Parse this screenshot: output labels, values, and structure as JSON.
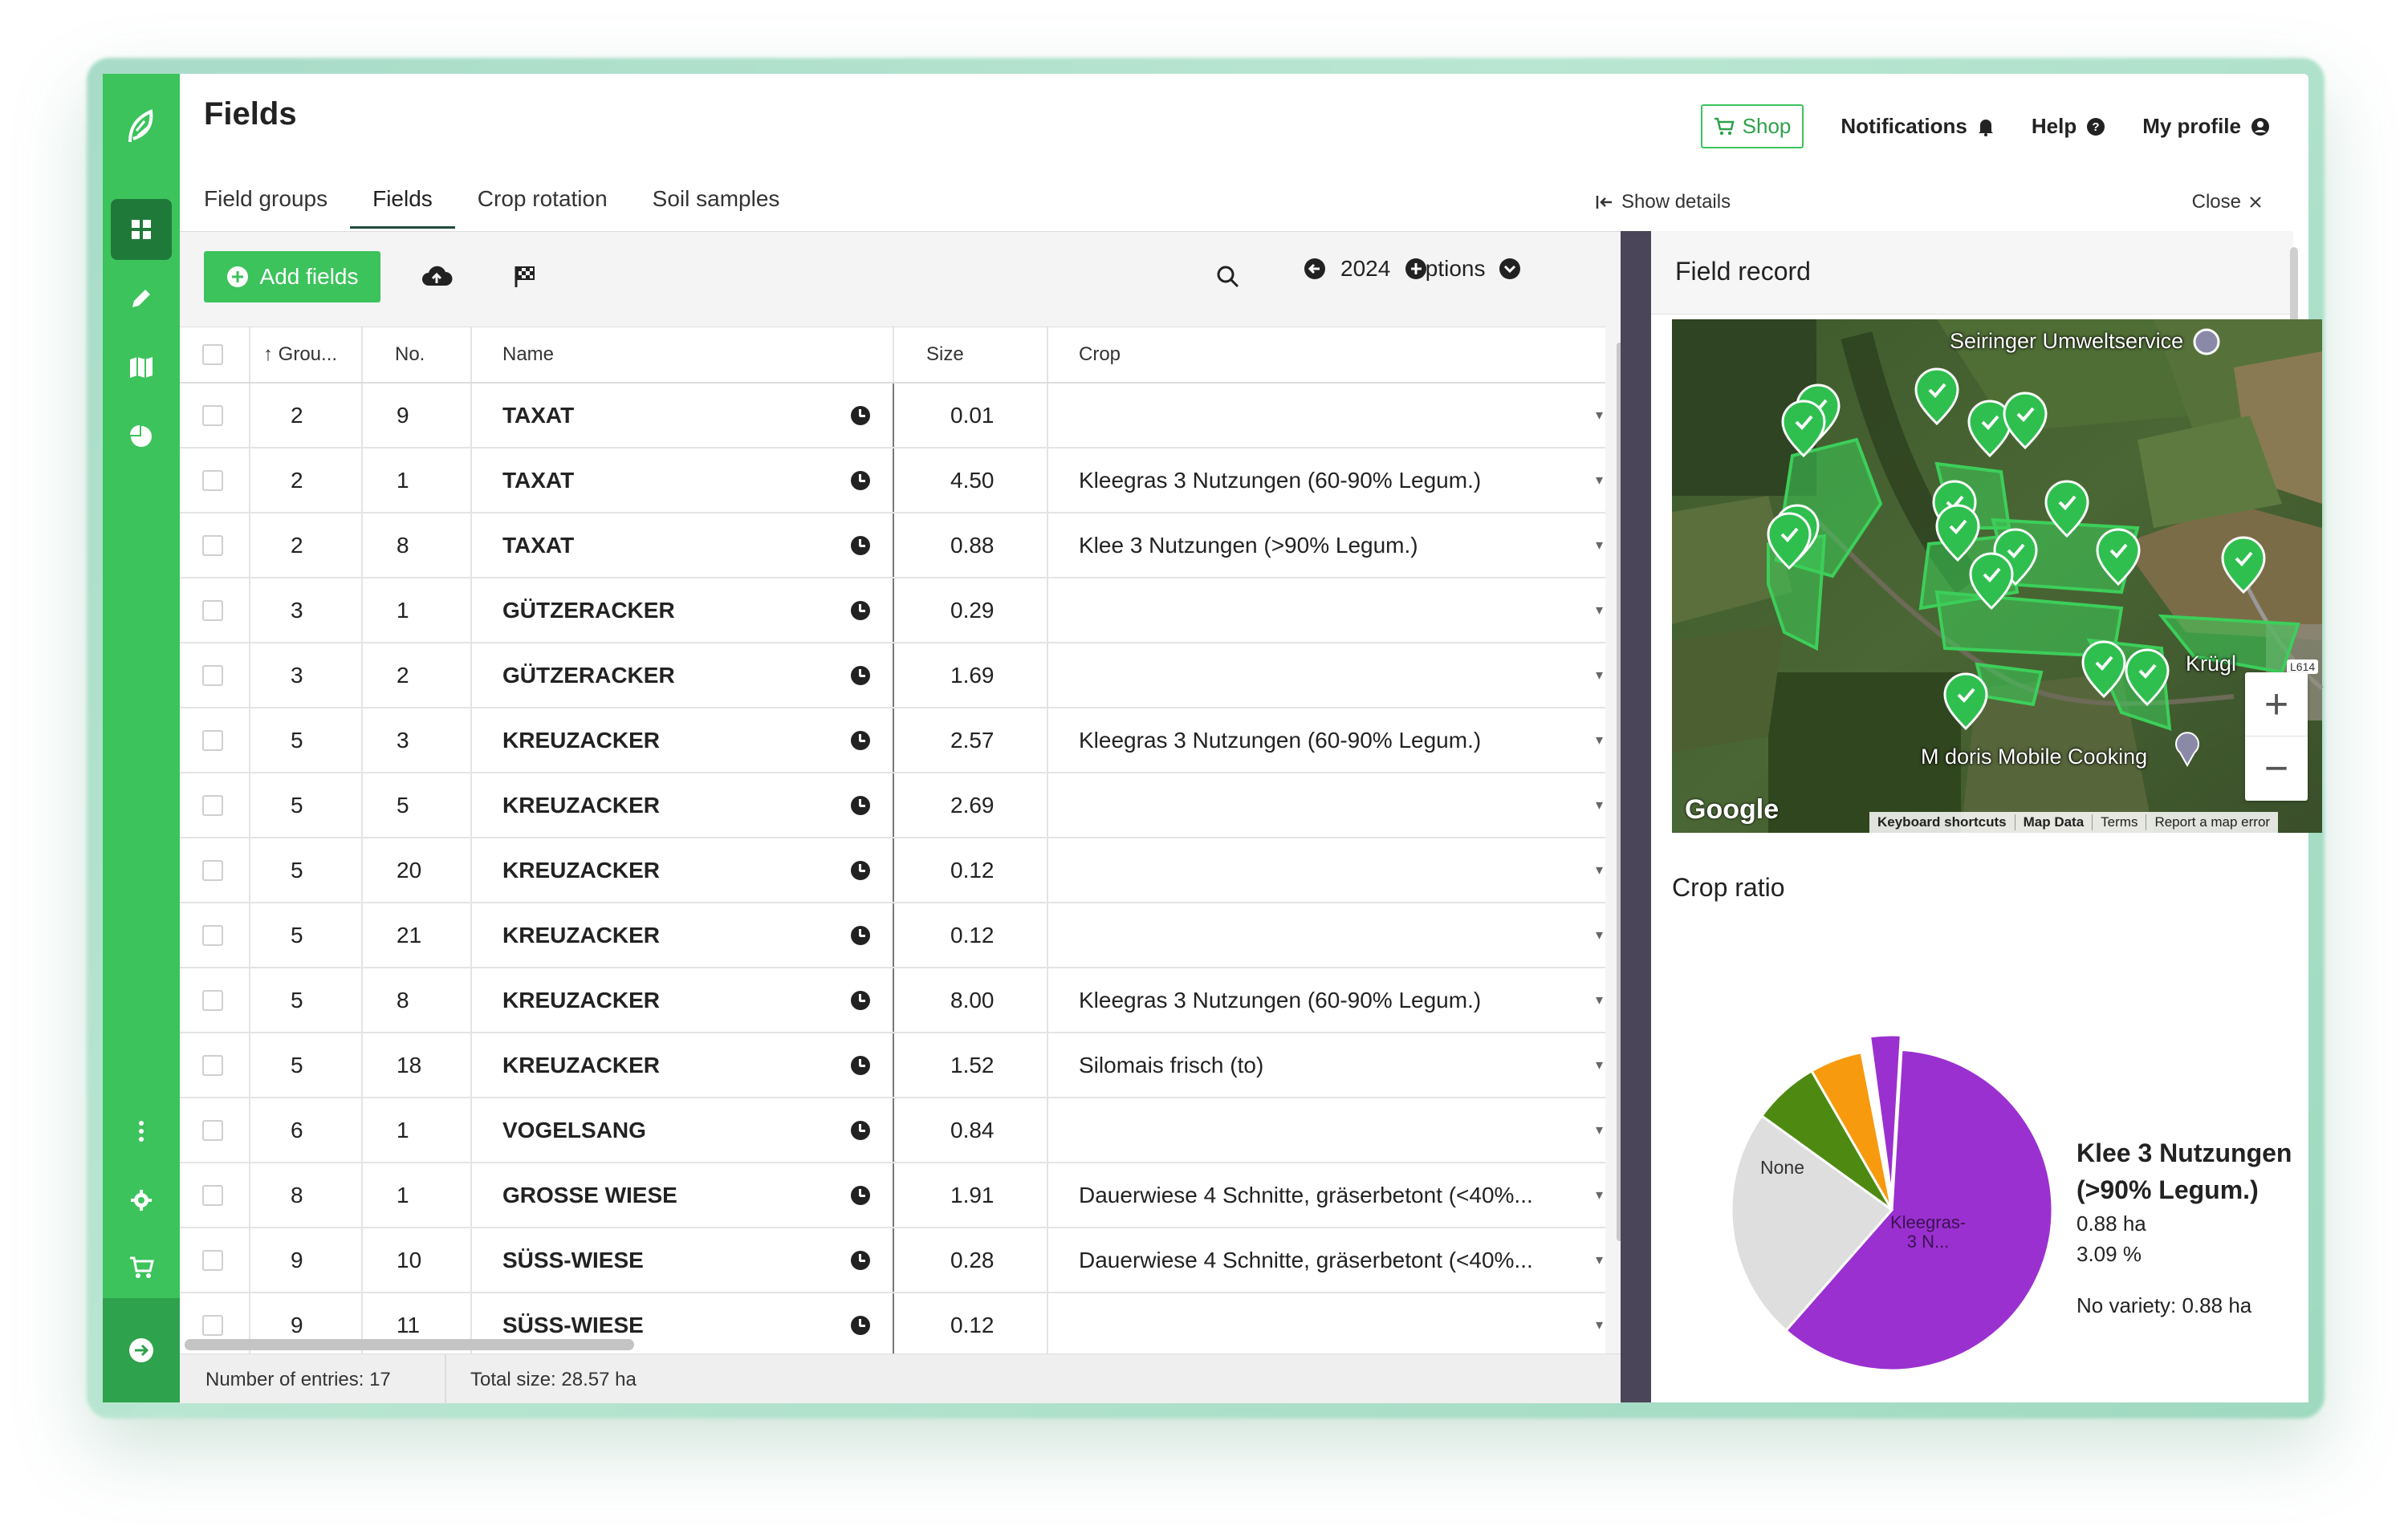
{
  "app": {
    "page_title": "Fields",
    "top_actions": {
      "shop": "Shop",
      "notifications": "Notifications",
      "help": "Help",
      "profile": "My profile"
    },
    "tabs": [
      {
        "label": "Field groups",
        "active": false
      },
      {
        "label": "Fields",
        "active": true
      },
      {
        "label": "Crop rotation",
        "active": false
      },
      {
        "label": "Soil samples",
        "active": false
      }
    ],
    "show_details": "Show details",
    "close": "Close",
    "accent_color": "#3cc35c"
  },
  "toolbar": {
    "add_fields": "Add fields",
    "year": "2024",
    "options": "Options"
  },
  "table": {
    "columns": [
      "Grou...",
      "No.",
      "Name",
      "Size",
      "Crop"
    ],
    "rows": [
      {
        "group": "2",
        "no": "9",
        "name": "TAXAT",
        "size": "0.01",
        "crop": ""
      },
      {
        "group": "2",
        "no": "1",
        "name": "TAXAT",
        "size": "4.50",
        "crop": "Kleegras 3 Nutzungen (60-90% Legum.)"
      },
      {
        "group": "2",
        "no": "8",
        "name": "TAXAT",
        "size": "0.88",
        "crop": "Klee 3 Nutzungen (>90% Legum.)"
      },
      {
        "group": "3",
        "no": "1",
        "name": "GÜTZERACKER",
        "size": "0.29",
        "crop": ""
      },
      {
        "group": "3",
        "no": "2",
        "name": "GÜTZERACKER",
        "size": "1.69",
        "crop": ""
      },
      {
        "group": "5",
        "no": "3",
        "name": "KREUZACKER",
        "size": "2.57",
        "crop": "Kleegras 3 Nutzungen (60-90% Legum.)"
      },
      {
        "group": "5",
        "no": "5",
        "name": "KREUZACKER",
        "size": "2.69",
        "crop": ""
      },
      {
        "group": "5",
        "no": "20",
        "name": "KREUZACKER",
        "size": "0.12",
        "crop": ""
      },
      {
        "group": "5",
        "no": "21",
        "name": "KREUZACKER",
        "size": "0.12",
        "crop": ""
      },
      {
        "group": "5",
        "no": "8",
        "name": "KREUZACKER",
        "size": "8.00",
        "crop": "Kleegras 3 Nutzungen (60-90% Legum.)"
      },
      {
        "group": "5",
        "no": "18",
        "name": "KREUZACKER",
        "size": "1.52",
        "crop": "Silomais frisch (to)"
      },
      {
        "group": "6",
        "no": "1",
        "name": "VOGELSANG",
        "size": "0.84",
        "crop": ""
      },
      {
        "group": "8",
        "no": "1",
        "name": "GROSSE WIESE",
        "size": "1.91",
        "crop": "Dauerwiese 4 Schnitte, gräserbetont (<40%..."
      },
      {
        "group": "9",
        "no": "10",
        "name": "SÜSS-WIESE",
        "size": "0.28",
        "crop": "Dauerwiese 4 Schnitte, gräserbetont (<40%..."
      },
      {
        "group": "9",
        "no": "11",
        "name": "SÜSS-WIESE",
        "size": "0.12",
        "crop": ""
      }
    ],
    "footer_entries": "Number of entries: 17",
    "footer_size": "Total size: 28.57 ha"
  },
  "panel": {
    "title": "Field record",
    "map": {
      "label_umwelt": "Seiringer Umweltservice",
      "label_krug": "Krügl",
      "label_cooking": "M doris Mobile Cooking",
      "road_badge": "L614",
      "google": "Google",
      "attributions": [
        "Keyboard shortcuts",
        "Map Data",
        "Terms",
        "Report a map error"
      ],
      "zoom_in": "+",
      "zoom_out": "−"
    },
    "crop_ratio_title": "Crop ratio",
    "legend": {
      "title": "Klee 3 Nutzungen (>90% Legum.)",
      "area": "0.88 ha",
      "percent": "3.09 %",
      "variety": "No variety: 0.88 ha"
    }
  },
  "chart_data": {
    "type": "pie",
    "series": [
      {
        "name": "Kleegras-3 N...",
        "value": 60.5,
        "color": "#9b30d0"
      },
      {
        "name": "None",
        "value": 23.5,
        "color": "#dedede"
      },
      {
        "name": "",
        "value": 6.7,
        "color": "#4e8a12"
      },
      {
        "name": "",
        "value": 5.3,
        "color": "#f79a0e"
      },
      {
        "name": "",
        "value": 0.9,
        "color": "#ffffff"
      },
      {
        "name": "Klee 3 Nutzungen (>90% Legum.)",
        "value": 3.09,
        "color": "#9b30d0"
      }
    ],
    "slice_labels": [
      "None",
      "Kleegras-",
      "3 N..."
    ]
  }
}
